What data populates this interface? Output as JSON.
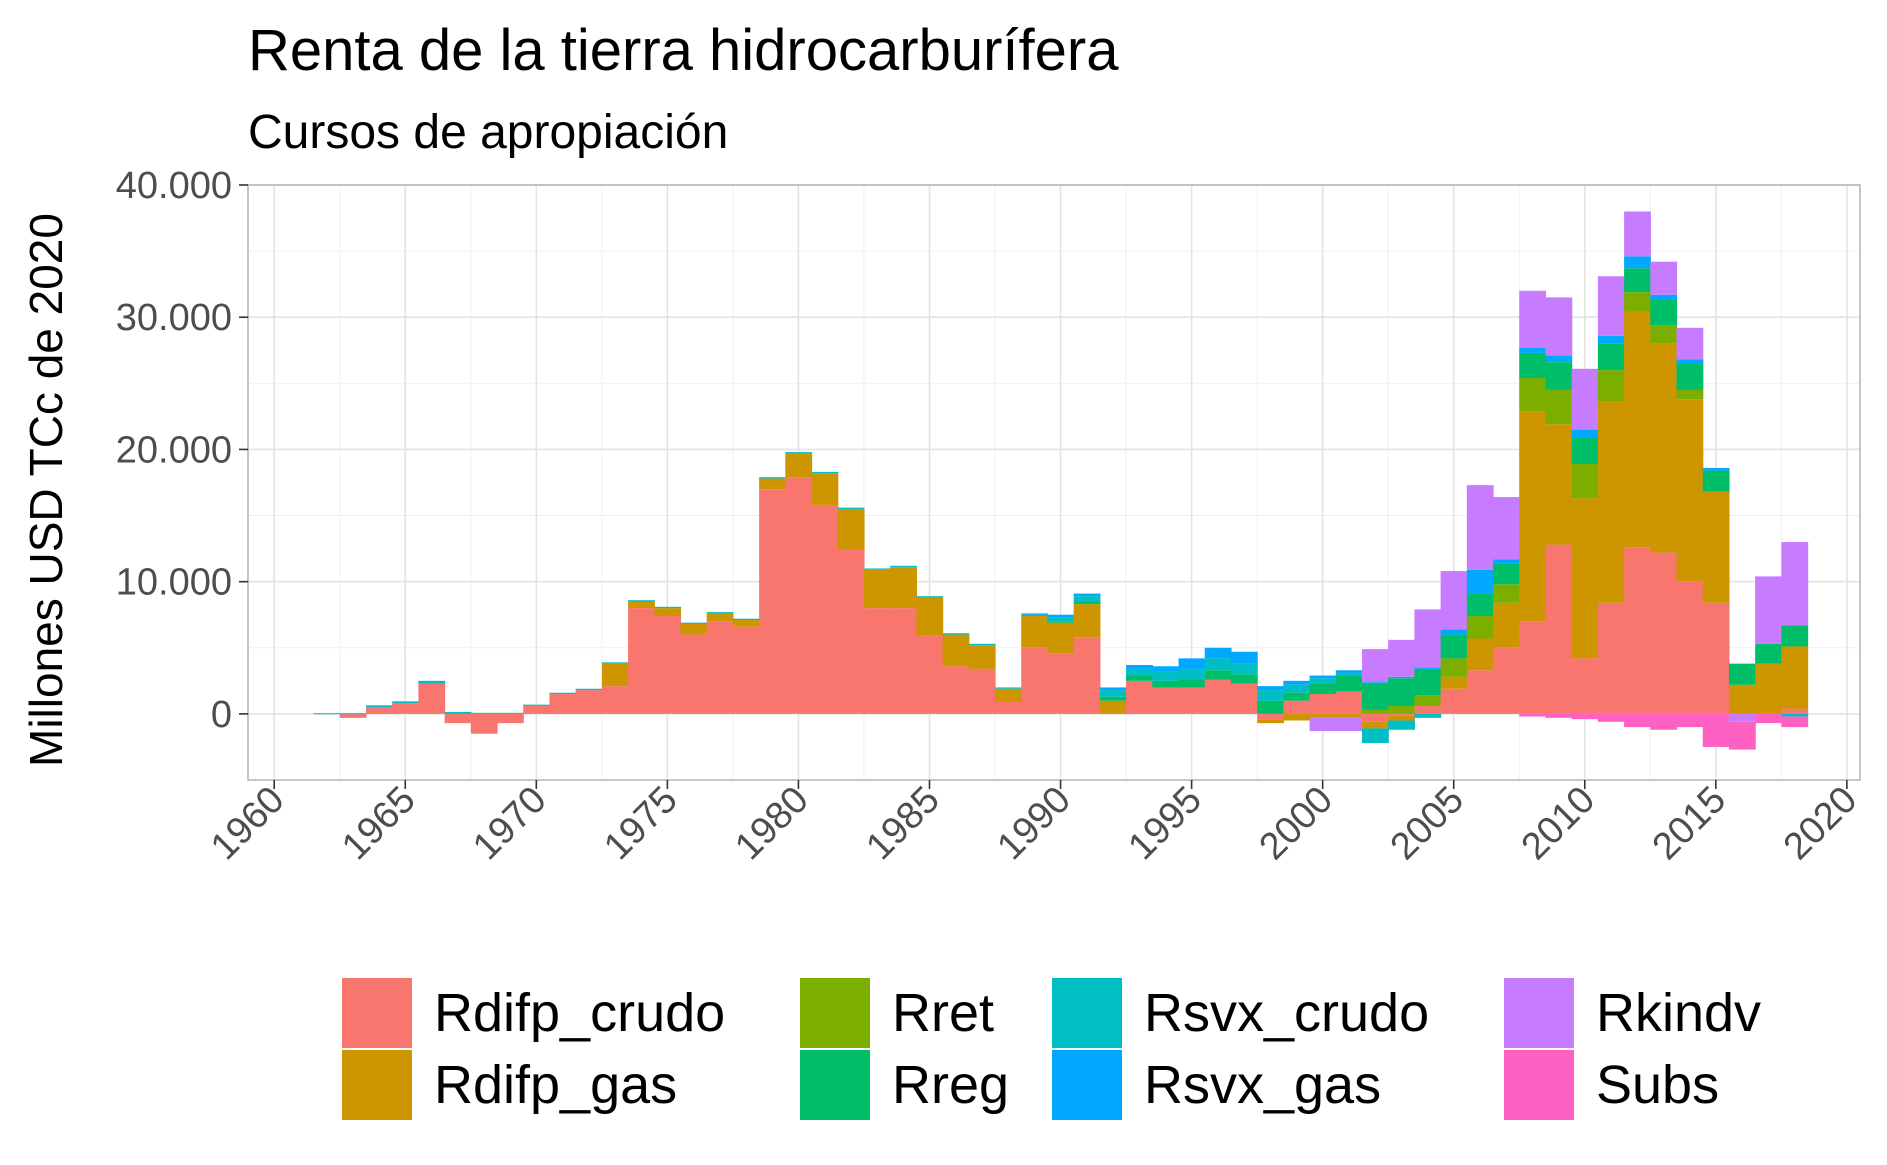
{
  "chart_data": {
    "type": "bar",
    "stacked": true,
    "title": "Renta de la tierra hidrocarburífera",
    "subtitle": "Cursos de apropiación",
    "ylabel": "Millones USD TCc de 2020",
    "xlabel": "",
    "xlim": [
      1959,
      2020.5
    ],
    "ylim": [
      -5000,
      40000
    ],
    "x_ticks": [
      1960,
      1965,
      1970,
      1975,
      1980,
      1985,
      1990,
      1995,
      2000,
      2005,
      2010,
      2015,
      2020
    ],
    "x_tick_labels": [
      "1960",
      "1965",
      "1970",
      "1975",
      "1980",
      "1985",
      "1990",
      "1995",
      "2000",
      "2005",
      "2010",
      "2015",
      "2020"
    ],
    "y_ticks": [
      0,
      10000,
      20000,
      30000,
      40000
    ],
    "y_tick_labels": [
      "0",
      "10.000",
      "20.000",
      "30.000",
      "40.000"
    ],
    "grid": true,
    "legend_position": "bottom",
    "years": [
      1962,
      1963,
      1964,
      1965,
      1966,
      1967,
      1968,
      1969,
      1970,
      1971,
      1972,
      1973,
      1974,
      1975,
      1976,
      1977,
      1978,
      1979,
      1980,
      1981,
      1982,
      1983,
      1984,
      1985,
      1986,
      1987,
      1988,
      1989,
      1990,
      1991,
      1992,
      1993,
      1994,
      1995,
      1996,
      1997,
      1998,
      1999,
      2000,
      2001,
      2002,
      2003,
      2004,
      2005,
      2006,
      2007,
      2008,
      2009,
      2010,
      2011,
      2012,
      2013,
      2014,
      2015,
      2016,
      2017,
      2018
    ],
    "series": [
      {
        "name": "Rdifp_crudo",
        "color": "#F8766D",
        "values": [
          0,
          -300,
          500,
          800,
          2300,
          -700,
          -1500,
          -700,
          600,
          1500,
          1800,
          2100,
          8000,
          7400,
          6000,
          7000,
          6600,
          17000,
          17900,
          15800,
          12400,
          8000,
          8000,
          5900,
          3600,
          3400,
          900,
          5000,
          4600,
          5800,
          0,
          2500,
          2000,
          2000,
          2600,
          2300,
          -400,
          1000,
          1500,
          1700,
          -600,
          -100,
          600,
          1900,
          3300,
          5000,
          7000,
          12800,
          4200,
          8400,
          12600,
          12200,
          10000,
          8400,
          0,
          0,
          400
        ]
      },
      {
        "name": "Rdifp_gas",
        "color": "#CD9600",
        "values": [
          0,
          0,
          0,
          0,
          0,
          0,
          0,
          0,
          0,
          0,
          0,
          1700,
          500,
          600,
          800,
          600,
          500,
          800,
          1800,
          2400,
          3100,
          2900,
          3100,
          2900,
          2400,
          1800,
          1000,
          2400,
          2300,
          2500,
          1000,
          0,
          0,
          0,
          0,
          0,
          -300,
          -500,
          -300,
          -300,
          -500,
          -400,
          0,
          900,
          2400,
          3400,
          15900,
          9100,
          12100,
          15200,
          17800,
          15800,
          13800,
          8400,
          2200,
          3800,
          4700
        ]
      },
      {
        "name": "Rret",
        "color": "#7CAE00",
        "values": [
          0,
          0,
          0,
          0,
          0,
          0,
          0,
          0,
          0,
          0,
          0,
          0,
          0,
          0,
          0,
          0,
          0,
          0,
          0,
          0,
          0,
          0,
          0,
          0,
          0,
          0,
          0,
          0,
          0,
          0,
          0,
          0,
          0,
          0,
          0,
          0,
          0,
          0,
          0,
          0,
          300,
          600,
          800,
          1400,
          1700,
          1400,
          2500,
          2600,
          2600,
          2400,
          1500,
          1400,
          700,
          0,
          0,
          0,
          0
        ]
      },
      {
        "name": "Rreg",
        "color": "#00BE67",
        "values": [
          0,
          0,
          0,
          0,
          0,
          0,
          0,
          0,
          0,
          0,
          0,
          0,
          0,
          0,
          0,
          0,
          0,
          0,
          0,
          0,
          0,
          0,
          0,
          0,
          0,
          0,
          0,
          0,
          100,
          200,
          300,
          400,
          500,
          600,
          700,
          700,
          1000,
          600,
          800,
          1200,
          2000,
          2100,
          2000,
          1800,
          1700,
          1600,
          1900,
          2100,
          2000,
          2000,
          1800,
          1900,
          2000,
          1600,
          1600,
          1500,
          1600
        ]
      },
      {
        "name": "Rsvx_crudo",
        "color": "#00BFC4",
        "values": [
          50,
          50,
          150,
          150,
          200,
          150,
          80,
          80,
          100,
          100,
          100,
          100,
          100,
          100,
          100,
          100,
          100,
          100,
          100,
          100,
          100,
          100,
          100,
          100,
          100,
          100,
          100,
          100,
          300,
          400,
          500,
          500,
          700,
          800,
          900,
          800,
          800,
          600,
          400,
          200,
          -1100,
          -700,
          -300,
          0,
          0,
          0,
          0,
          0,
          0,
          0,
          0,
          0,
          0,
          0,
          0,
          0,
          -200
        ]
      },
      {
        "name": "Rsvx_gas",
        "color": "#00A9FF",
        "values": [
          0,
          0,
          0,
          0,
          0,
          0,
          0,
          0,
          0,
          0,
          0,
          0,
          0,
          0,
          0,
          0,
          0,
          0,
          0,
          0,
          0,
          0,
          0,
          0,
          0,
          0,
          0,
          100,
          200,
          200,
          200,
          300,
          400,
          800,
          800,
          900,
          300,
          300,
          200,
          200,
          100,
          100,
          100,
          400,
          1800,
          300,
          400,
          500,
          600,
          600,
          900,
          400,
          300,
          200,
          0,
          0,
          0
        ]
      },
      {
        "name": "Rkindv",
        "color": "#C77CFF",
        "values": [
          0,
          0,
          0,
          0,
          0,
          0,
          0,
          0,
          0,
          0,
          0,
          0,
          0,
          0,
          0,
          0,
          0,
          0,
          0,
          0,
          0,
          0,
          0,
          0,
          0,
          0,
          0,
          0,
          0,
          0,
          0,
          0,
          0,
          0,
          0,
          0,
          0,
          0,
          -1000,
          -1000,
          2500,
          2800,
          4400,
          4400,
          6400,
          4700,
          4300,
          4400,
          4600,
          4500,
          3400,
          2500,
          2400,
          0,
          -600,
          5100,
          6300
        ]
      },
      {
        "name": "Subs",
        "color": "#FF61C3",
        "values": [
          0,
          0,
          0,
          0,
          0,
          0,
          0,
          0,
          0,
          0,
          0,
          0,
          0,
          0,
          0,
          0,
          0,
          0,
          0,
          0,
          0,
          0,
          0,
          0,
          0,
          0,
          0,
          0,
          0,
          0,
          0,
          0,
          0,
          0,
          0,
          0,
          0,
          0,
          0,
          0,
          0,
          0,
          0,
          0,
          0,
          0,
          -200,
          -300,
          -400,
          -600,
          -1000,
          -1200,
          -1000,
          -2500,
          -2100,
          -700,
          -800
        ]
      }
    ]
  }
}
